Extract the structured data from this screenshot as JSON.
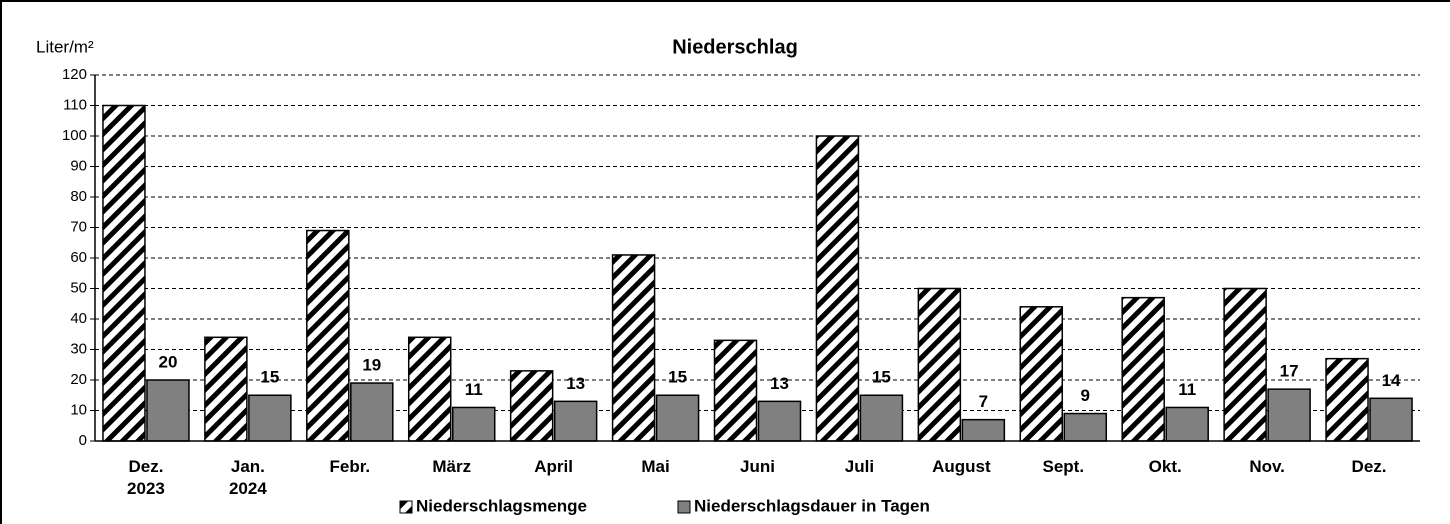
{
  "chart_data": {
    "type": "bar",
    "title": "Niederschlag",
    "y_axis_label": "Liter/m²",
    "categories": [
      "Dez.\n2023",
      "Jan.\n2024",
      "Febr.",
      "März",
      "April",
      "Mai",
      "Juni",
      "Juli",
      "August",
      "Sept.",
      "Okt.",
      "Nov.",
      "Dez."
    ],
    "series": [
      {
        "name": "Niederschlagsmenge",
        "color": "#000000",
        "hatch": true,
        "values": [
          110,
          34,
          69,
          34,
          23,
          61,
          33,
          100,
          50,
          44,
          47,
          50,
          27
        ]
      },
      {
        "name": "Niederschlagsdauer in Tagen",
        "color": "#808080",
        "hatch": false,
        "data_labels": true,
        "values": [
          20,
          15,
          19,
          11,
          13,
          15,
          13,
          15,
          7,
          9,
          11,
          17,
          14
        ]
      }
    ],
    "ylim": [
      0,
      120
    ],
    "yticks": [
      0,
      10,
      20,
      30,
      40,
      50,
      60,
      70,
      80,
      90,
      100,
      110,
      120
    ],
    "grid": true,
    "legend": "bottom"
  }
}
